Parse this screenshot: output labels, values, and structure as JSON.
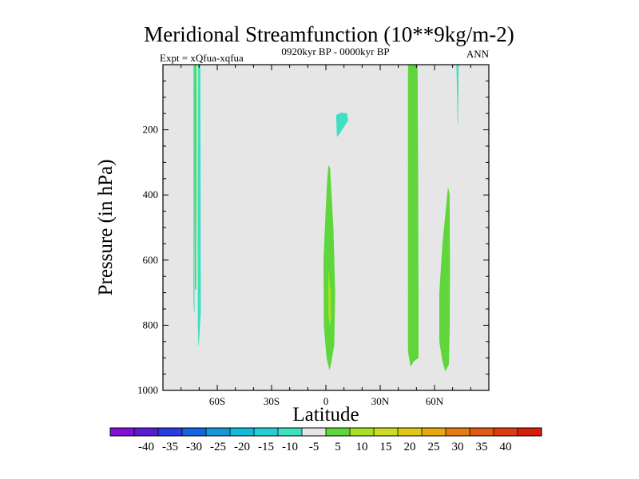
{
  "chart_data": {
    "type": "contour",
    "title": "Meridional Streamfunction (10**9kg/m-2)",
    "subtitle_left": "Expt = xQfua-xqfua",
    "subtitle_center": "0920kyr BP - 0000kyr BP",
    "subtitle_right": "ANN",
    "xlabel": "Latitude",
    "ylabel": "Pressure (in hPa)",
    "xlim": [
      -90,
      90
    ],
    "ylim": [
      1000,
      0
    ],
    "y_reversed": true,
    "x_ticks": [
      {
        "value": -60,
        "label": "60S"
      },
      {
        "value": -30,
        "label": "30S"
      },
      {
        "value": 0,
        "label": "0"
      },
      {
        "value": 30,
        "label": "30N"
      },
      {
        "value": 60,
        "label": "60N"
      }
    ],
    "y_ticks": [
      {
        "value": 200,
        "label": "200"
      },
      {
        "value": 400,
        "label": "400"
      },
      {
        "value": 600,
        "label": "600"
      },
      {
        "value": 800,
        "label": "800"
      },
      {
        "value": 1000,
        "label": "1000"
      }
    ],
    "background_color": "#e6e6e6",
    "regions": [
      {
        "name": "sh-polar-band-a",
        "level": 5,
        "color": "#5ed63c",
        "points": [
          [
            -72.5,
            0
          ],
          [
            -71.5,
            0
          ],
          [
            -71.6,
            300
          ],
          [
            -71.8,
            690
          ],
          [
            -72.2,
            690
          ],
          [
            -72.4,
            300
          ]
        ]
      },
      {
        "name": "sh-polar-band-b",
        "level": -5,
        "color": "#3ee0c0",
        "points": [
          [
            -70.5,
            0
          ],
          [
            -69.5,
            0
          ],
          [
            -69.3,
            400
          ],
          [
            -69.2,
            760
          ],
          [
            -70.3,
            860
          ],
          [
            -70.6,
            800
          ],
          [
            -70.7,
            400
          ]
        ]
      },
      {
        "name": "sh-polar-band-c",
        "level": -5,
        "color": "#3ee0c0",
        "points": [
          [
            -73.0,
            0
          ],
          [
            -72.6,
            0
          ],
          [
            -72.6,
            400
          ],
          [
            -72.7,
            760
          ],
          [
            -73.0,
            720
          ]
        ]
      },
      {
        "name": "upper-trop-patch",
        "level": -5,
        "color": "#3ee0c0",
        "points": [
          [
            5.8,
            155
          ],
          [
            8.5,
            148
          ],
          [
            11.5,
            150
          ],
          [
            12.2,
            170
          ],
          [
            10.0,
            190
          ],
          [
            7.0,
            215
          ],
          [
            6.2,
            220
          ],
          [
            6.0,
            185
          ]
        ]
      },
      {
        "name": "equatorial-cell",
        "level": 5,
        "color": "#5ed63c",
        "points": [
          [
            1.5,
            310
          ],
          [
            2.2,
            320
          ],
          [
            4.0,
            500
          ],
          [
            5.0,
            700
          ],
          [
            4.5,
            860
          ],
          [
            3.0,
            910
          ],
          [
            2.0,
            935
          ],
          [
            0.5,
            900
          ],
          [
            -1.0,
            800
          ],
          [
            -1.2,
            600
          ],
          [
            0.0,
            450
          ],
          [
            0.8,
            360
          ]
        ]
      },
      {
        "name": "equatorial-core",
        "level": 10,
        "color": "#a8e023",
        "points": [
          [
            1.5,
            640
          ],
          [
            2.6,
            700
          ],
          [
            2.8,
            780
          ],
          [
            2.1,
            800
          ],
          [
            1.4,
            760
          ]
        ]
      },
      {
        "name": "nh-midlat-band",
        "level": 5,
        "color": "#5ed63c",
        "points": [
          [
            45.5,
            0
          ],
          [
            50.5,
            0
          ],
          [
            50.8,
            300
          ],
          [
            51.0,
            700
          ],
          [
            51.0,
            900
          ],
          [
            48.5,
            910
          ],
          [
            46.8,
            925
          ],
          [
            45.5,
            880
          ],
          [
            45.5,
            500
          ]
        ]
      },
      {
        "name": "nh-highlat-cell",
        "level": 5,
        "color": "#5ed63c",
        "points": [
          [
            67.5,
            380
          ],
          [
            68.2,
            400
          ],
          [
            68.4,
            600
          ],
          [
            68.3,
            800
          ],
          [
            67.8,
            920
          ],
          [
            66.0,
            940
          ],
          [
            64.5,
            910
          ],
          [
            62.8,
            850
          ],
          [
            62.8,
            700
          ],
          [
            64.5,
            550
          ],
          [
            66.8,
            420
          ]
        ]
      },
      {
        "name": "nh-polar-sliver",
        "level": -5,
        "color": "#3ee0c0",
        "points": [
          [
            72.2,
            0
          ],
          [
            73.2,
            0
          ],
          [
            73.0,
            100
          ],
          [
            72.8,
            180
          ],
          [
            72.6,
            100
          ]
        ]
      }
    ],
    "colorbar": {
      "colors": [
        "#8210d6",
        "#5a1cd2",
        "#2a3ce0",
        "#1466dc",
        "#1496d8",
        "#14b8d8",
        "#22d0d4",
        "#3ee0c0",
        "#e6e6e6",
        "#5ed63c",
        "#a8e023",
        "#ccdc1e",
        "#e0c814",
        "#e8a814",
        "#e47c14",
        "#e05a14",
        "#dc3c10",
        "#d81e0c"
      ],
      "labels": [
        "-40",
        "-35",
        "-30",
        "-25",
        "-20",
        "-15",
        "-10",
        "-5",
        "5",
        "10",
        "15",
        "20",
        "25",
        "30",
        "35",
        "40"
      ]
    }
  }
}
